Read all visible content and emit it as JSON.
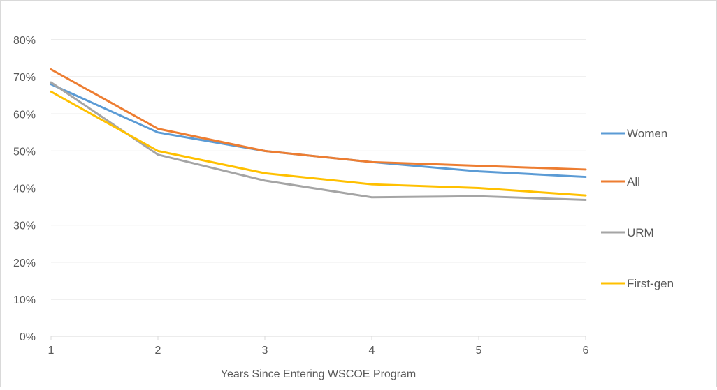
{
  "chart_data": {
    "type": "line",
    "title": "",
    "xlabel": "Years Since Entering WSCOE Program",
    "ylabel": "",
    "x": [
      1,
      2,
      3,
      4,
      5,
      6
    ],
    "xlim": [
      1,
      6
    ],
    "ylim": [
      0,
      0.8
    ],
    "yticks": [
      0,
      0.1,
      0.2,
      0.3,
      0.4,
      0.5,
      0.6,
      0.7,
      0.8
    ],
    "ytick_labels": [
      "0%",
      "10%",
      "20%",
      "30%",
      "40%",
      "50%",
      "60%",
      "70%",
      "80%"
    ],
    "xtick_labels": [
      "1",
      "2",
      "3",
      "4",
      "5",
      "6"
    ],
    "grid": "horizontal",
    "legend_position": "right",
    "series": [
      {
        "name": "Women",
        "color": "#5b9bd5",
        "values": [
          0.68,
          0.55,
          0.5,
          0.47,
          0.445,
          0.43
        ]
      },
      {
        "name": "All",
        "color": "#ed7d31",
        "values": [
          0.72,
          0.56,
          0.5,
          0.47,
          0.46,
          0.45
        ]
      },
      {
        "name": "URM",
        "color": "#a5a5a5",
        "values": [
          0.685,
          0.49,
          0.42,
          0.375,
          0.378,
          0.368
        ]
      },
      {
        "name": "First-gen",
        "color": "#ffc000",
        "values": [
          0.66,
          0.5,
          0.44,
          0.41,
          0.4,
          0.38
        ]
      }
    ]
  }
}
